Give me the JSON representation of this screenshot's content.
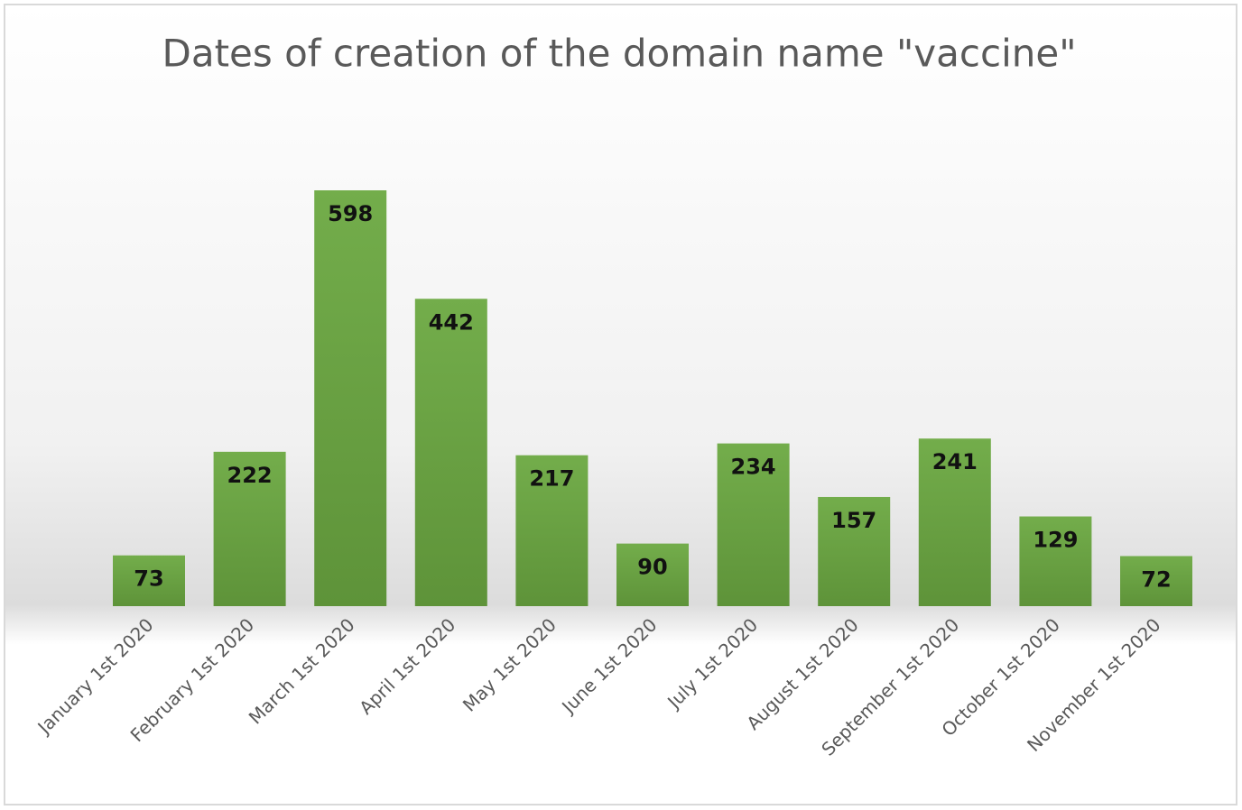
{
  "chart_data": {
    "type": "bar",
    "title": "Dates of creation of the domain name \"vaccine\"",
    "categories": [
      "January 1st 2020",
      "February 1st 2020",
      "March 1st 2020",
      "April 1st 2020",
      "May 1st 2020",
      "June 1st 2020",
      "July 1st 2020",
      "August 1st 2020",
      "September 1st 2020",
      "October 1st 2020",
      "November 1st 2020"
    ],
    "values": [
      73,
      222,
      598,
      442,
      217,
      90,
      234,
      157,
      241,
      129,
      72
    ],
    "color": "#70ad47"
  }
}
